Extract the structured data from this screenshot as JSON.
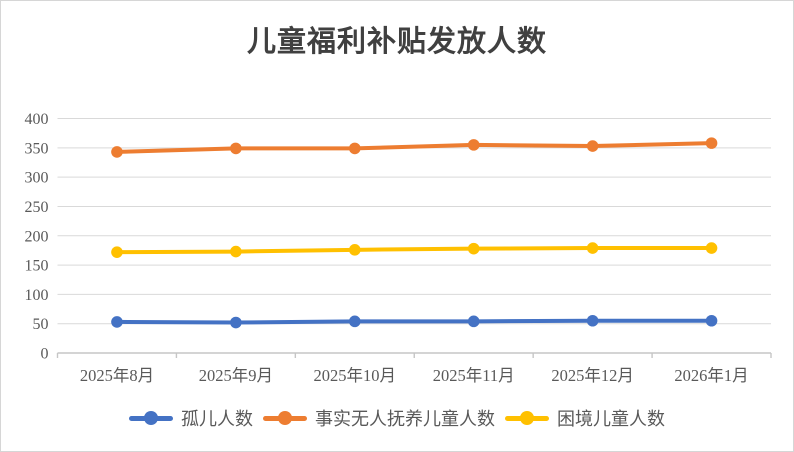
{
  "title": "儿童福利补贴发放人数",
  "chart_data": {
    "type": "line",
    "categories": [
      "2025年8月",
      "2025年9月",
      "2025年10月",
      "2025年11月",
      "2025年12月",
      "2026年1月"
    ],
    "series": [
      {
        "name": "孤儿人数",
        "color": "#4472C4",
        "values": [
          53,
          52,
          54,
          54,
          55,
          55
        ]
      },
      {
        "name": "事实无人抚养儿童人数",
        "color": "#ED7D31",
        "values": [
          343,
          349,
          349,
          355,
          353,
          358
        ]
      },
      {
        "name": "困境儿童人数",
        "color": "#FFC000",
        "values": [
          172,
          173,
          176,
          178,
          179,
          179
        ]
      }
    ],
    "ylim": [
      0,
      400
    ],
    "y_ticks": [
      0,
      50,
      100,
      150,
      200,
      250,
      300,
      350,
      400
    ],
    "grid": true,
    "legend_position": "bottom"
  },
  "styles": {
    "grid_color": "#d9d9d9",
    "axis_color": "#c6c6c6",
    "tick_label_color": "#595959",
    "title_color": "#404040",
    "background_color": "#ffffff",
    "border_color": "#d6d6d6"
  }
}
